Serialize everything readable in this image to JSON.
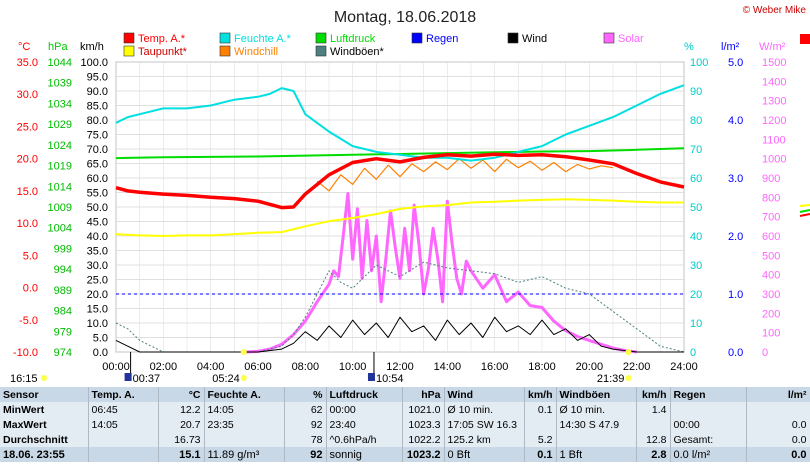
{
  "title": "Montag, 18.06.2018",
  "copyright": "© Weber Mike",
  "legend": [
    {
      "label": "Temp. A.*",
      "color": "#ff0000"
    },
    {
      "label": "Feuchte A.*",
      "color": "#00e0e0"
    },
    {
      "label": "Luftdruck",
      "color": "#00dd00"
    },
    {
      "label": "Regen",
      "color": "#0000ff"
    },
    {
      "label": "Wind",
      "color": "#000000"
    },
    {
      "label": "Solar",
      "color": "#ff66ff"
    },
    {
      "label": "Taupunkt*",
      "color": "#ffff00"
    },
    {
      "label": "Windchill",
      "color": "#ff8000"
    },
    {
      "label": "Windböen*",
      "color": "#4d8080"
    }
  ],
  "axes": {
    "temp": {
      "unit": "°C",
      "color": "#ff0000",
      "ticks": [
        "35.0",
        "30.0",
        "25.0",
        "20.0",
        "15.0",
        "10.0",
        "5.0",
        "0.0",
        "-5.0",
        "-10.0"
      ]
    },
    "pressure": {
      "unit": "hPa",
      "color": "#00cc00",
      "ticks": [
        "1044",
        "1039",
        "1034",
        "1029",
        "1024",
        "1019",
        "1014",
        "1009",
        "1004",
        "999",
        "994",
        "989",
        "984",
        "979",
        "974"
      ]
    },
    "wind": {
      "unit": "km/h",
      "color": "#000000",
      "ticks": [
        "100.0",
        "95.0",
        "90.0",
        "85.0",
        "80.0",
        "75.0",
        "70.0",
        "65.0",
        "60.0",
        "55.0",
        "50.0",
        "45.0",
        "40.0",
        "35.0",
        "30.0",
        "25.0",
        "20.0",
        "15.0",
        "10.0",
        "5.0",
        "0.0"
      ]
    },
    "humidity": {
      "unit": "%",
      "color": "#00cccc",
      "ticks": [
        "100",
        "90",
        "80",
        "70",
        "60",
        "50",
        "40",
        "30",
        "20",
        "10",
        "0"
      ]
    },
    "rain": {
      "unit": "l/m²",
      "color": "#0000ff",
      "ticks": [
        "5.0",
        "4.0",
        "3.0",
        "2.0",
        "1.0",
        "0.0"
      ]
    },
    "solar": {
      "unit": "W/m²",
      "color": "#ff66ff",
      "ticks": [
        "1500",
        "1400",
        "1300",
        "1200",
        "1100",
        "1000",
        "900",
        "800",
        "700",
        "600",
        "500",
        "400",
        "300",
        "200",
        "100",
        "0"
      ]
    },
    "x_ticks": [
      "00:00",
      "02:00",
      "04:00",
      "06:00",
      "08:00",
      "10:00",
      "12:00",
      "14:00",
      "16:00",
      "18:00",
      "20:00",
      "22:00",
      "24:00"
    ]
  },
  "sun_markers": {
    "sunrise": "05:24",
    "sunset": "21:39",
    "time_left": "16:15",
    "moon_1": "00:37",
    "moon_2": "10:54"
  },
  "chart_data": {
    "type": "line",
    "x_unit": "hours",
    "xlim": [
      0,
      24
    ],
    "series": [
      {
        "name": "Temp. A.*",
        "axis": "°C",
        "color": "#ff0000",
        "x": [
          0,
          0.5,
          1,
          2,
          3,
          4,
          5,
          6,
          7,
          7.5,
          8,
          9,
          10,
          11,
          12,
          13,
          14,
          15,
          16,
          17,
          18,
          19,
          20,
          21,
          22,
          23,
          24
        ],
        "y": [
          15.5,
          15.0,
          14.8,
          14.5,
          14.3,
          14.0,
          13.8,
          13.4,
          12.4,
          12.5,
          14.5,
          17.5,
          19.4,
          20.0,
          19.5,
          20.2,
          20.6,
          20.4,
          20.7,
          20.5,
          20.6,
          20.3,
          19.8,
          19.2,
          17.7,
          16.4,
          15.6
        ]
      },
      {
        "name": "Feuchte A.*",
        "axis": "%",
        "color": "#00e0e0",
        "x": [
          0,
          0.5,
          1,
          2,
          3,
          4,
          5,
          6,
          6.5,
          7,
          7.5,
          8,
          9,
          10,
          11,
          12,
          13,
          14,
          15,
          16,
          17,
          18,
          19,
          20,
          21,
          22,
          23,
          24
        ],
        "y": [
          79,
          81,
          82,
          84,
          84,
          85,
          87,
          88,
          89,
          91,
          90,
          82,
          76,
          71,
          69,
          68,
          67,
          67,
          66,
          67,
          69,
          71,
          75,
          78,
          81,
          85,
          89,
          92
        ]
      },
      {
        "name": "Luftdruck",
        "axis": "hPa",
        "color": "#00dd00",
        "x": [
          0,
          2,
          4,
          6,
          8,
          10,
          12,
          14,
          16,
          18,
          20,
          22,
          24
        ],
        "y": [
          1020.8,
          1021.0,
          1021.1,
          1021.2,
          1021.4,
          1021.6,
          1021.8,
          1022.0,
          1022.2,
          1022.4,
          1022.5,
          1022.8,
          1023.2
        ]
      },
      {
        "name": "Taupunkt*",
        "axis": "°C",
        "color": "#ffff00",
        "x": [
          0,
          1,
          2,
          3,
          4,
          5,
          6,
          7,
          8,
          9,
          10,
          11,
          12,
          13,
          14,
          15,
          16,
          17,
          18,
          19,
          20,
          21,
          22,
          23,
          24
        ],
        "y": [
          8.3,
          8.1,
          8.0,
          8.1,
          8.1,
          8.3,
          8.5,
          8.6,
          9.5,
          10.3,
          10.8,
          11.4,
          12.2,
          12.6,
          12.8,
          13.2,
          13.3,
          13.5,
          13.6,
          13.7,
          13.6,
          13.5,
          13.3,
          13.2,
          13.2
        ]
      },
      {
        "name": "Windchill",
        "axis": "°C",
        "color": "#ff8000",
        "x": [
          8.5,
          9,
          9.5,
          10,
          10.5,
          11,
          11.5,
          12,
          12.5,
          13,
          13.5,
          14,
          14.5,
          15,
          15.5,
          16,
          16.5,
          17,
          17.5,
          18,
          18.5,
          19,
          19.5,
          20,
          20.5,
          21
        ],
        "y": [
          16.5,
          15.0,
          17.5,
          16.0,
          18.5,
          16.8,
          19.0,
          17.2,
          19.2,
          18.0,
          19.5,
          18.3,
          20.0,
          18.5,
          19.8,
          18.0,
          19.9,
          18.6,
          19.6,
          18.2,
          19.4,
          18.0,
          19.1,
          18.4,
          18.9,
          18.6
        ]
      },
      {
        "name": "Wind",
        "axis": "km/h",
        "color": "#000000",
        "x": [
          0,
          0.5,
          1,
          2,
          3,
          4,
          5,
          6,
          7,
          7.5,
          8,
          8.5,
          9,
          9.5,
          10,
          10.5,
          11,
          11.5,
          12,
          12.5,
          13,
          13.5,
          14,
          14.5,
          15,
          15.5,
          16,
          16.5,
          17,
          17.5,
          18,
          18.5,
          19,
          19.5,
          20,
          20.5,
          21,
          22,
          23,
          24
        ],
        "y": [
          4,
          2,
          0,
          0,
          0,
          0,
          0,
          0,
          1,
          3,
          7,
          4,
          9,
          5,
          11,
          6,
          10,
          5,
          12,
          7,
          9,
          4,
          11,
          6,
          10,
          5,
          12,
          7,
          9,
          6,
          11,
          6,
          8,
          4,
          6,
          2,
          1,
          0,
          0,
          0
        ]
      },
      {
        "name": "Windböen*",
        "axis": "km/h",
        "color": "#4d8080",
        "x": [
          0,
          0.5,
          1,
          2,
          3,
          4,
          5,
          6,
          7,
          7.5,
          8,
          8.5,
          9,
          9.5,
          10,
          11,
          12,
          13,
          14,
          15,
          16,
          17,
          18,
          19,
          20,
          21,
          22,
          22.5,
          23,
          24
        ],
        "y": [
          10,
          8,
          4,
          0,
          0,
          0,
          0,
          0,
          2,
          6,
          12,
          20,
          28,
          24,
          22,
          30,
          26,
          31,
          29,
          28,
          27,
          24,
          26,
          22,
          20,
          14,
          8,
          5,
          2,
          0
        ]
      },
      {
        "name": "Regen",
        "axis": "l/m²",
        "color": "#0000ff",
        "x": [
          0,
          24
        ],
        "y": [
          1.0,
          1.0
        ]
      },
      {
        "name": "Solar",
        "axis": "W/m²",
        "color": "#ff66ff",
        "x": [
          5.5,
          6,
          6.5,
          7,
          7.5,
          8,
          8.5,
          9,
          9.2,
          9.4,
          9.6,
          9.8,
          10,
          10.2,
          10.4,
          10.6,
          10.8,
          11,
          11.2,
          11.4,
          11.6,
          11.8,
          12,
          12.2,
          12.4,
          12.6,
          12.8,
          13,
          13.2,
          13.4,
          13.6,
          13.8,
          14,
          14.2,
          14.4,
          14.6,
          14.8,
          15,
          15.5,
          16,
          16.5,
          17,
          17.5,
          18,
          18.5,
          19,
          19.5,
          20,
          20.5,
          21,
          21.5,
          22
        ],
        "y": [
          0,
          3,
          15,
          40,
          90,
          160,
          260,
          350,
          420,
          390,
          600,
          820,
          480,
          740,
          380,
          680,
          420,
          600,
          260,
          480,
          730,
          540,
          380,
          640,
          420,
          760,
          560,
          300,
          430,
          640,
          480,
          260,
          780,
          560,
          380,
          300,
          470,
          420,
          330,
          400,
          260,
          310,
          240,
          230,
          160,
          110,
          80,
          60,
          40,
          20,
          8,
          0
        ]
      }
    ]
  },
  "stats": {
    "head": [
      "Sensor",
      "Temp. A.",
      "°C",
      "Feuchte A.",
      "%",
      "Luftdruck",
      "hPa",
      "Wind",
      "km/h",
      "Windböen",
      "km/h",
      "Regen",
      "l/m²"
    ],
    "rows": [
      [
        "MinWert",
        "06:45",
        "12.2",
        "14:05",
        "62",
        "00:00",
        "1021.0",
        "Ø 10 min.",
        "0.1",
        "Ø 10 min.",
        "1.4",
        "",
        ""
      ],
      [
        "MaxWert",
        "14:05",
        "20.7",
        "23:35",
        "92",
        "23:40",
        "1023.3",
        "17:05   SW 16.3",
        "",
        "14:30   S 47.9",
        "",
        "00:00",
        "0.0"
      ],
      [
        "Durchschnitt",
        "",
        "16.73",
        "",
        "78",
        "^0.6hPa/h",
        "1022.2",
        "125.2 km",
        "5.2",
        "",
        "12.8",
        "Gesamt:",
        "0.0"
      ],
      [
        "18.06. 23:55",
        "",
        "15.1",
        "11.89 g/m³",
        "92",
        "sonnig",
        "1023.2",
        "0 Bft",
        "0.1",
        "1 Bft",
        "2.8",
        "0.0 l/m²",
        "0.0"
      ]
    ]
  }
}
